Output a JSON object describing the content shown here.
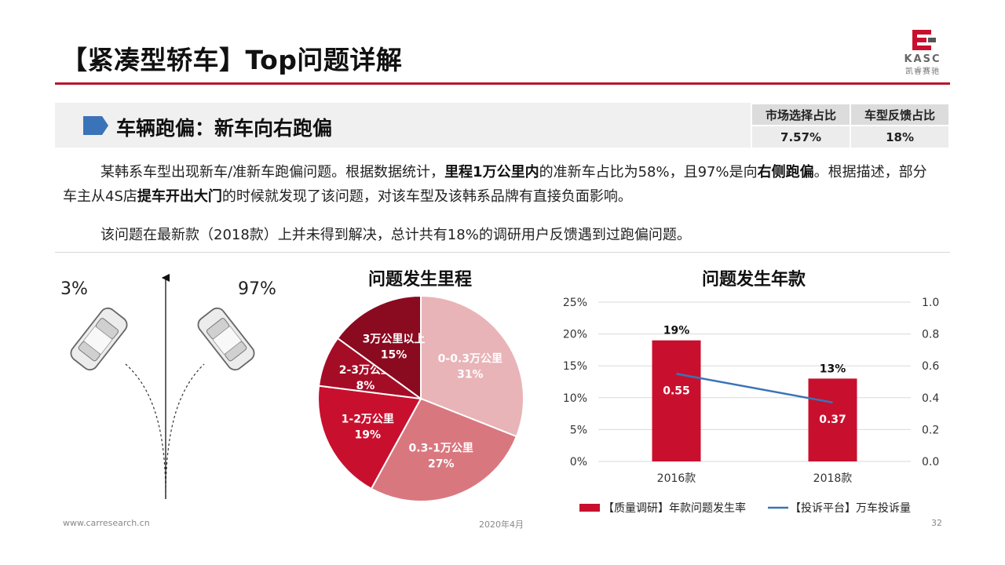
{
  "header": {
    "title": "【紧凑型轿车】Top问题详解",
    "logo_text": "KASC",
    "logo_subtext": "凯睿赛驰"
  },
  "section": {
    "title": "车辆跑偏：新车向右跑偏",
    "table": {
      "headers": [
        "市场选择占比",
        "车型反馈占比"
      ],
      "values": [
        "7.57%",
        "18%"
      ]
    }
  },
  "paragraphs": [
    [
      {
        "t": "某韩系车型出现新车/准新车跑偏问题。根据数据统计，",
        "b": false
      },
      {
        "t": "里程1万公里内",
        "b": true
      },
      {
        "t": "的准新车占比为58%，且97%是向",
        "b": false
      },
      {
        "t": "右侧跑偏",
        "b": true
      },
      {
        "t": "。根据描述，部分车主从4S店",
        "b": false
      },
      {
        "t": "提车开出大门",
        "b": true
      },
      {
        "t": "的时候就发现了该问题，对该车型及该韩系品牌有直接负面影响。",
        "b": false
      }
    ],
    [
      {
        "t": "该问题在最新款（2018款）上并未得到解决，总计共有18%的调研用户反馈遇到过跑偏问题。",
        "b": false
      }
    ]
  ],
  "illustration": {
    "left_percent": "3%",
    "right_percent": "97%"
  },
  "chart_data": [
    {
      "type": "pie",
      "title": "问题发生里程",
      "slices": [
        {
          "label": "0-0.3万公里",
          "value": 31,
          "display": "31%",
          "color": "#e8b4b8"
        },
        {
          "label": "0.3-1万公里",
          "value": 27,
          "display": "27%",
          "color": "#d9777f"
        },
        {
          "label": "1-2万公里",
          "value": 19,
          "display": "19%",
          "color": "#c8102e"
        },
        {
          "label": "2-3万公里",
          "value": 8,
          "display": "8%",
          "color": "#a50d27"
        },
        {
          "label": "3万公里以上",
          "value": 15,
          "display": "15%",
          "color": "#8a0a20"
        }
      ]
    },
    {
      "type": "bar",
      "title": "问题发生年款",
      "categories": [
        "2016款",
        "2018款"
      ],
      "series": [
        {
          "name": "【质量调研】年款问题发生率",
          "type": "bar",
          "axis": "left",
          "values": [
            19,
            13
          ],
          "labels": [
            "19%",
            "13%"
          ],
          "color": "#c8102e"
        },
        {
          "name": "【投诉平台】万车投诉量",
          "type": "line",
          "axis": "right",
          "values": [
            0.55,
            0.37
          ],
          "labels": [
            "0.55",
            "0.37"
          ],
          "color": "#3a73b8"
        }
      ],
      "y_left": {
        "min": 0,
        "max": 25,
        "ticks": [
          "0%",
          "5%",
          "10%",
          "15%",
          "20%",
          "25%"
        ]
      },
      "y_right": {
        "min": 0,
        "max": 1.0,
        "ticks": [
          "0.0",
          "0.2",
          "0.4",
          "0.6",
          "0.8",
          "1.0"
        ]
      },
      "legend": "bottom",
      "grid": true
    }
  ],
  "footer": {
    "url": "www.carresearch.cn",
    "date": "2020年4月",
    "page": "32"
  }
}
